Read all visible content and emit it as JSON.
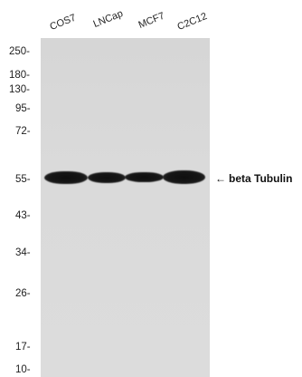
{
  "lanes": [
    "COS7",
    "LNCap",
    "MCF7",
    "C2C12"
  ],
  "markers": [
    "250-",
    "180-",
    "130-",
    "95-",
    "72-",
    "55-",
    "43-",
    "34-",
    "26-",
    "17-",
    "10-"
  ],
  "band": {
    "arrow": "←",
    "label": "beta Tubulin"
  },
  "colors": {
    "background": "#ffffff",
    "membrane": "#d8d8d8",
    "band": "#141414"
  }
}
